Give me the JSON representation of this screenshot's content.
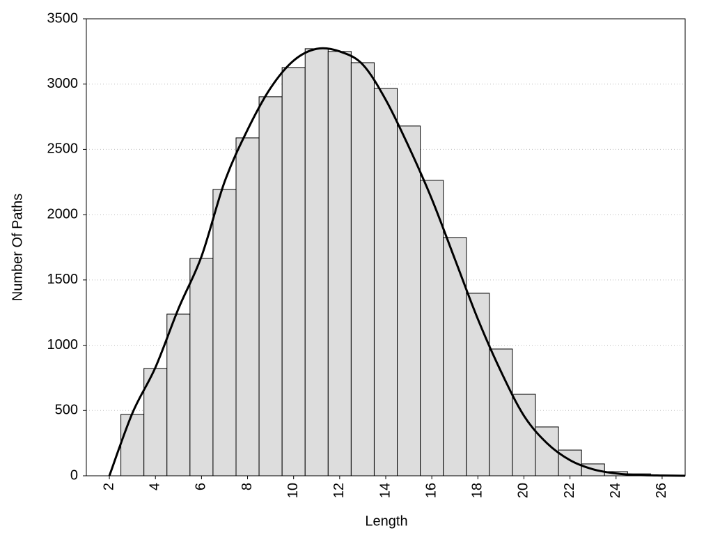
{
  "chart_data": {
    "type": "histogram",
    "xlabel": "Length",
    "ylabel": "Number Of Paths",
    "bins": [
      2.5,
      3.5,
      4.5,
      5.5,
      6.5,
      7.5,
      8.5,
      9.5,
      10.5,
      11.5,
      12.5,
      13.5,
      14.5,
      15.5,
      16.5,
      17.5,
      18.5,
      19.5,
      20.5,
      21.5,
      22.5,
      23.5,
      24.5,
      25.5,
      26.5
    ],
    "counts": [
      470,
      822,
      1238,
      1665,
      2193,
      2588,
      2903,
      3127,
      3271,
      3250,
      3164,
      2967,
      2679,
      2263,
      1825,
      1398,
      971,
      624,
      374,
      197,
      91,
      32,
      15,
      5
    ],
    "color": "#dddddd",
    "curve": {
      "color": "#000000",
      "x": [
        2,
        3,
        4,
        5,
        6,
        7,
        8,
        9,
        10,
        11,
        12,
        13,
        14,
        15,
        16,
        17,
        18,
        19,
        20,
        21,
        22,
        23,
        24,
        25,
        26,
        27
      ],
      "values": [
        0,
        480,
        830,
        1280,
        1680,
        2250,
        2650,
        2970,
        3180,
        3270,
        3250,
        3150,
        2880,
        2520,
        2120,
        1660,
        1200,
        800,
        460,
        250,
        120,
        50,
        18,
        6,
        2,
        0
      ]
    },
    "xlim": [
      1,
      27
    ],
    "ylim": [
      0,
      3500
    ],
    "xticks": [
      2,
      4,
      6,
      8,
      10,
      12,
      14,
      16,
      18,
      20,
      22,
      24,
      26
    ],
    "yticks": [
      0,
      500,
      1000,
      1500,
      2000,
      2500,
      3000,
      3500
    ],
    "grid": true
  }
}
